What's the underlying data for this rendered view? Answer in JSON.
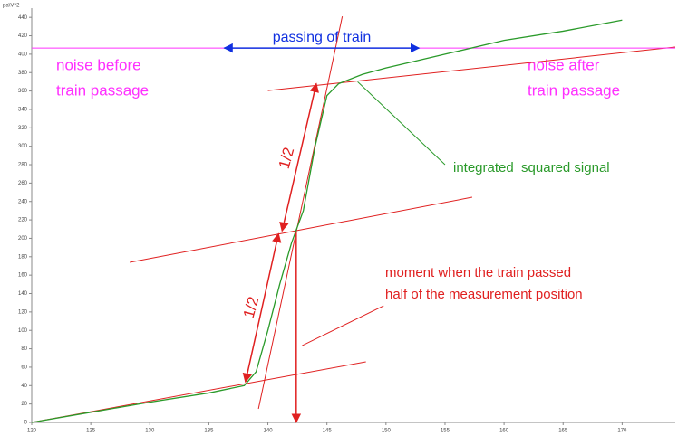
{
  "chart_data": {
    "type": "line",
    "y_label": "pa\\V^2",
    "xlim": [
      120,
      174.5
    ],
    "ylim": [
      0,
      450
    ],
    "xticks": [
      120,
      125,
      130,
      135,
      140,
      145,
      150,
      155,
      160,
      165,
      170
    ],
    "yticks": [
      0,
      20,
      40,
      60,
      80,
      100,
      120,
      140,
      160,
      180,
      200,
      220,
      240,
      260,
      280,
      300,
      320,
      340,
      360,
      380,
      400,
      420,
      440
    ],
    "series": [
      {
        "name": "integrated  squared signal",
        "color": "#2a9a2a",
        "x": [
          120,
          125,
          130,
          135,
          138,
          139,
          140,
          141,
          142,
          143,
          144,
          145,
          146,
          148,
          150,
          155,
          160,
          165,
          170
        ],
        "values": [
          0,
          11,
          22,
          32,
          40,
          55,
          100,
          150,
          195,
          230,
          300,
          355,
          368,
          378,
          385,
          400,
          415,
          425,
          437
        ]
      }
    ],
    "annotations": [
      {
        "x": [
          120,
          148.3
        ],
        "y": [
          0,
          65.8
        ],
        "color": "#e02020",
        "arrow": "none"
      },
      {
        "x": [
          128.3,
          157.3
        ],
        "y": [
          173.9,
          244.6
        ],
        "color": "#e02020",
        "arrow": "none"
      },
      {
        "x": [
          140,
          174.5
        ],
        "y": [
          360.5,
          407.7
        ],
        "color": "#e02020",
        "arrow": "none"
      },
      {
        "x": [
          139.2,
          146.3
        ],
        "y": [
          14.7,
          441
        ],
        "color": "#e02020",
        "arrow": "none"
      },
      {
        "x": [
          142.9,
          149.8
        ],
        "y": [
          83.5,
          126.7
        ],
        "color": "#e02020",
        "arrow": "none"
      },
      {
        "x": [
          142.4,
          142.4
        ],
        "y": [
          208,
          0
        ],
        "color": "#e02020",
        "arrow": "end"
      },
      {
        "x": [
          141.2,
          144.1
        ],
        "y": [
          208,
          368
        ],
        "color": "#e02020",
        "arrow": "both"
      },
      {
        "x": [
          138.1,
          140.9
        ],
        "y": [
          44,
          205
        ],
        "color": "#e02020",
        "arrow": "both"
      },
      {
        "x": [
          147.6,
          155
        ],
        "y": [
          370,
          280
        ],
        "color": "#2a9a2a",
        "arrow": "none"
      },
      {
        "x": [
          120,
          174.5
        ],
        "y": [
          406.7,
          406.7
        ],
        "color": "#ff30ff",
        "arrow": "none"
      },
      {
        "x": [
          136.3,
          152.8
        ],
        "y": [
          406.7,
          406.7
        ],
        "color": "#1030e0",
        "arrow": "both"
      }
    ],
    "labels": {
      "passing": "passing of train",
      "noise_before": [
        "noise before",
        "train passage"
      ],
      "noise_after": [
        "noise after",
        "train passage"
      ],
      "moment": [
        "moment when the train passed",
        "half of the measurement position"
      ],
      "half_upper": "1/2",
      "half_lower": "1/2"
    }
  }
}
